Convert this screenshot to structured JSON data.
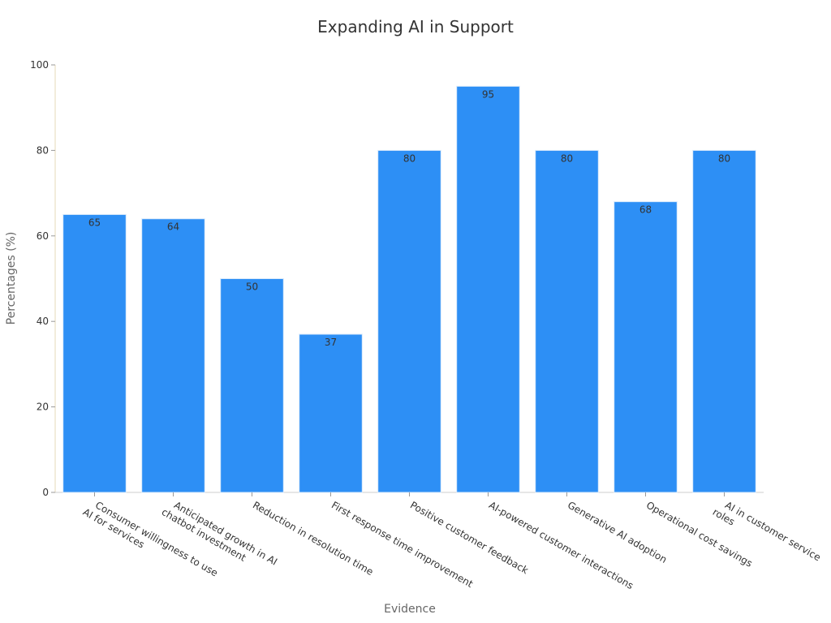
{
  "chart_data": {
    "type": "bar",
    "title": "Expanding AI in Support",
    "xlabel": "Evidence",
    "ylabel": "Percentages (%)",
    "ylim": [
      0,
      100
    ],
    "yticks": [
      0,
      20,
      40,
      60,
      80,
      100
    ],
    "grid": false,
    "legend": "none",
    "bar_color": "#2d8ff5",
    "categories": [
      [
        "Consumer willingness to use",
        "AI for services"
      ],
      [
        "Anticipated growth in AI",
        "chatbot investment"
      ],
      [
        "Reduction in resolution time"
      ],
      [
        "First response time improvement"
      ],
      [
        "Positive customer feedback"
      ],
      [
        "AI-powered customer interactions"
      ],
      [
        "Generative AI adoption"
      ],
      [
        "Operational cost savings"
      ],
      [
        "AI in customer service",
        "roles"
      ]
    ],
    "values": [
      65,
      64,
      50,
      37,
      80,
      95,
      80,
      68,
      80
    ]
  }
}
